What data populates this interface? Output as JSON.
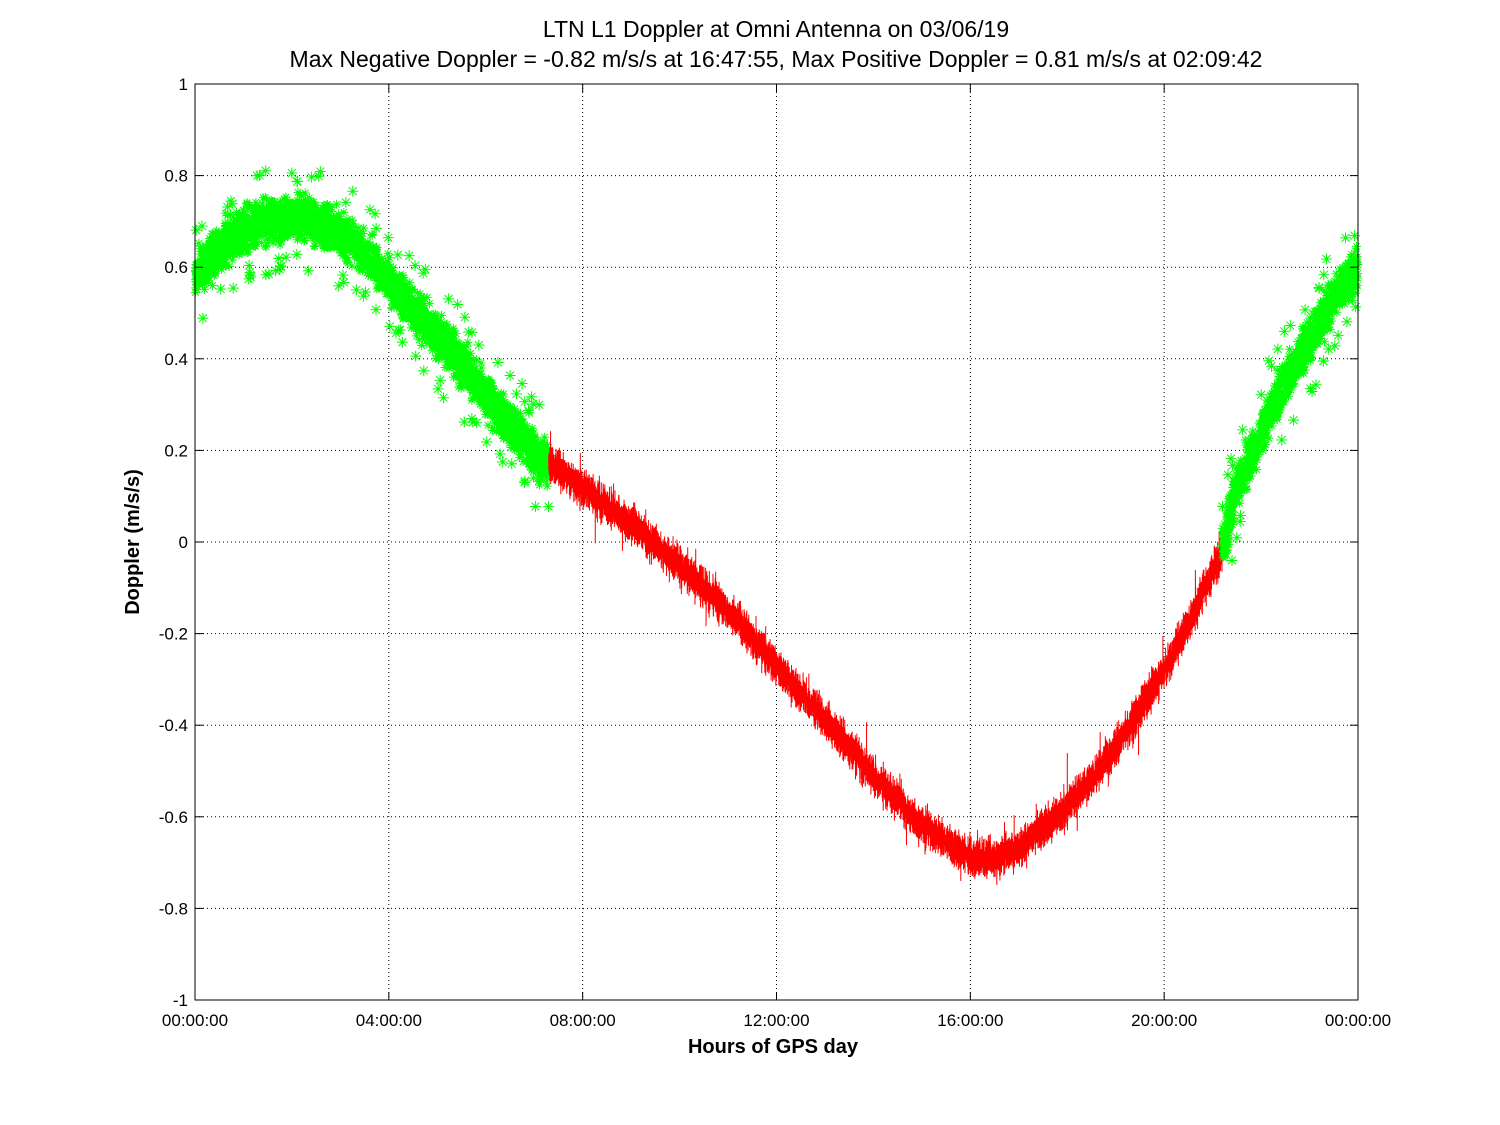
{
  "chart_data": {
    "type": "scatter",
    "title": "LTN  L1 Doppler at Omni Antenna on 03/06/19",
    "subtitle": "Max Negative Doppler = -0.82 m/s/s  at 16:47:55,   Max Positive Doppler = 0.81 m/s/s  at 02:09:42",
    "xlabel": "Hours of GPS day",
    "ylabel": "Doppler (m/s/s)",
    "xlim": [
      0,
      24
    ],
    "ylim": [
      -1,
      1
    ],
    "grid": true,
    "x_ticks": [
      {
        "value": 0,
        "label": "00:00:00"
      },
      {
        "value": 4,
        "label": "04:00:00"
      },
      {
        "value": 8,
        "label": "08:00:00"
      },
      {
        "value": 12,
        "label": "12:00:00"
      },
      {
        "value": 16,
        "label": "16:00:00"
      },
      {
        "value": 20,
        "label": "20:00:00"
      },
      {
        "value": 24,
        "label": "00:00:00"
      }
    ],
    "y_ticks": [
      {
        "value": 1,
        "label": "1"
      },
      {
        "value": 0.8,
        "label": "0.8"
      },
      {
        "value": 0.6,
        "label": "0.6"
      },
      {
        "value": 0.4,
        "label": "0.4"
      },
      {
        "value": 0.2,
        "label": "0.2"
      },
      {
        "value": 0,
        "label": "0"
      },
      {
        "value": -0.2,
        "label": "-0.2"
      },
      {
        "value": -0.4,
        "label": "-0.4"
      },
      {
        "value": -0.6,
        "label": "-0.6"
      },
      {
        "value": -0.8,
        "label": "-0.8"
      },
      {
        "value": -1,
        "label": "-1"
      }
    ],
    "series": [
      {
        "style": "markers",
        "marker": "asterisk",
        "color": "#00ff00",
        "x": [
          0,
          0.5,
          1,
          1.5,
          2,
          2.5,
          3,
          3.5,
          4,
          4.5,
          5,
          5.5,
          6,
          6.5,
          7,
          7.3
        ],
        "y": [
          0.58,
          0.64,
          0.68,
          0.7,
          0.71,
          0.7,
          0.67,
          0.63,
          0.57,
          0.51,
          0.45,
          0.39,
          0.32,
          0.26,
          0.19,
          0.16
        ],
        "spread": 0.055
      },
      {
        "style": "noisy-line",
        "color": "#ff0000",
        "x": [
          7.3,
          8,
          9,
          10,
          11,
          12,
          13,
          14,
          15,
          16,
          16.5,
          17,
          18,
          19,
          20,
          20.5,
          21,
          21.2
        ],
        "y": [
          0.17,
          0.12,
          0.04,
          -0.05,
          -0.15,
          -0.27,
          -0.39,
          -0.51,
          -0.62,
          -0.69,
          -0.69,
          -0.67,
          -0.58,
          -0.45,
          -0.28,
          -0.18,
          -0.06,
          -0.02
        ],
        "spread": 0.05
      },
      {
        "style": "markers",
        "marker": "asterisk",
        "color": "#00ff00",
        "x": [
          21.2,
          21.5,
          22,
          22.5,
          23,
          23.5,
          24
        ],
        "y": [
          -0.02,
          0.12,
          0.24,
          0.35,
          0.44,
          0.53,
          0.6
        ],
        "spread": 0.055
      }
    ]
  }
}
